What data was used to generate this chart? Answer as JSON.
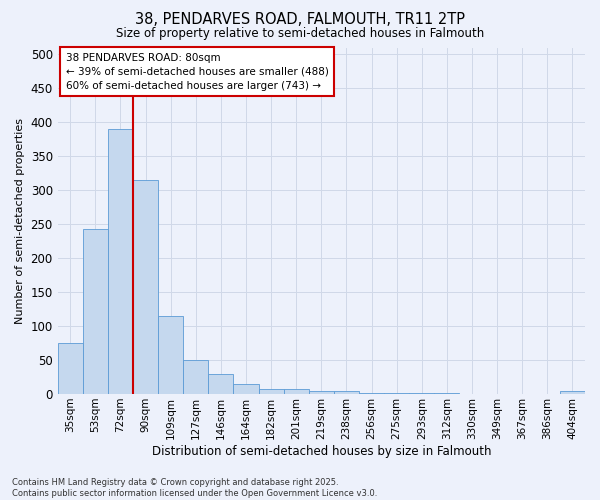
{
  "title_line1": "38, PENDARVES ROAD, FALMOUTH, TR11 2TP",
  "title_line2": "Size of property relative to semi-detached houses in Falmouth",
  "xlabel": "Distribution of semi-detached houses by size in Falmouth",
  "ylabel": "Number of semi-detached properties",
  "bar_labels": [
    "35sqm",
    "53sqm",
    "72sqm",
    "90sqm",
    "109sqm",
    "127sqm",
    "146sqm",
    "164sqm",
    "182sqm",
    "201sqm",
    "219sqm",
    "238sqm",
    "256sqm",
    "275sqm",
    "293sqm",
    "312sqm",
    "330sqm",
    "349sqm",
    "367sqm",
    "386sqm",
    "404sqm"
  ],
  "bar_values": [
    75,
    243,
    390,
    315,
    115,
    50,
    30,
    15,
    7,
    7,
    5,
    4,
    2,
    2,
    1,
    1,
    0,
    0,
    0,
    0,
    5
  ],
  "bar_color": "#c5d8ee",
  "bar_edge_color": "#5b9bd5",
  "grid_color": "#d0d8e8",
  "annotation_box_text": "38 PENDARVES ROAD: 80sqm\n← 39% of semi-detached houses are smaller (488)\n60% of semi-detached houses are larger (743) →",
  "annotation_box_color": "#ffffff",
  "annotation_box_edge_color": "#cc0000",
  "vline_color": "#cc0000",
  "vline_x_index": 2.5,
  "ylim": [
    0,
    510
  ],
  "yticks": [
    0,
    50,
    100,
    150,
    200,
    250,
    300,
    350,
    400,
    450,
    500
  ],
  "footnote": "Contains HM Land Registry data © Crown copyright and database right 2025.\nContains public sector information licensed under the Open Government Licence v3.0.",
  "background_color": "#edf1fb"
}
